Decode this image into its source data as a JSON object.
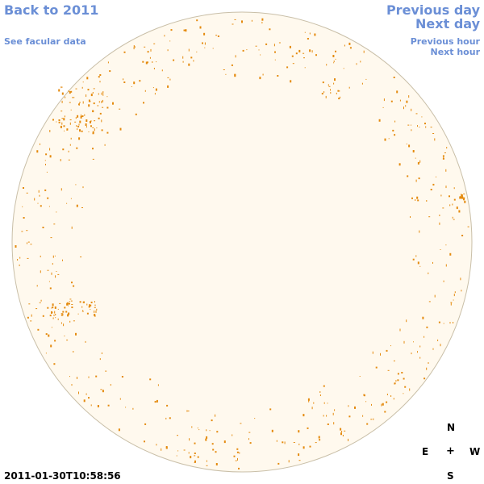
{
  "links": {
    "back_to_year": "Back to 2011",
    "see_facular_data": "See facular data",
    "previous_day": "Previous day",
    "next_day": "Next day",
    "previous_hour": "Previous hour",
    "next_hour": "Next hour"
  },
  "compass": {
    "north": "N",
    "east": "E",
    "center": "+",
    "west": "W",
    "south": "S"
  },
  "timestamp": "2011-01-30T10:58:56",
  "colors": {
    "link": "#6b8fd6",
    "disk_fill": "#fff9ee",
    "disk_stroke": "#c9bfa8",
    "magnetic_element": "#e48a0e"
  }
}
